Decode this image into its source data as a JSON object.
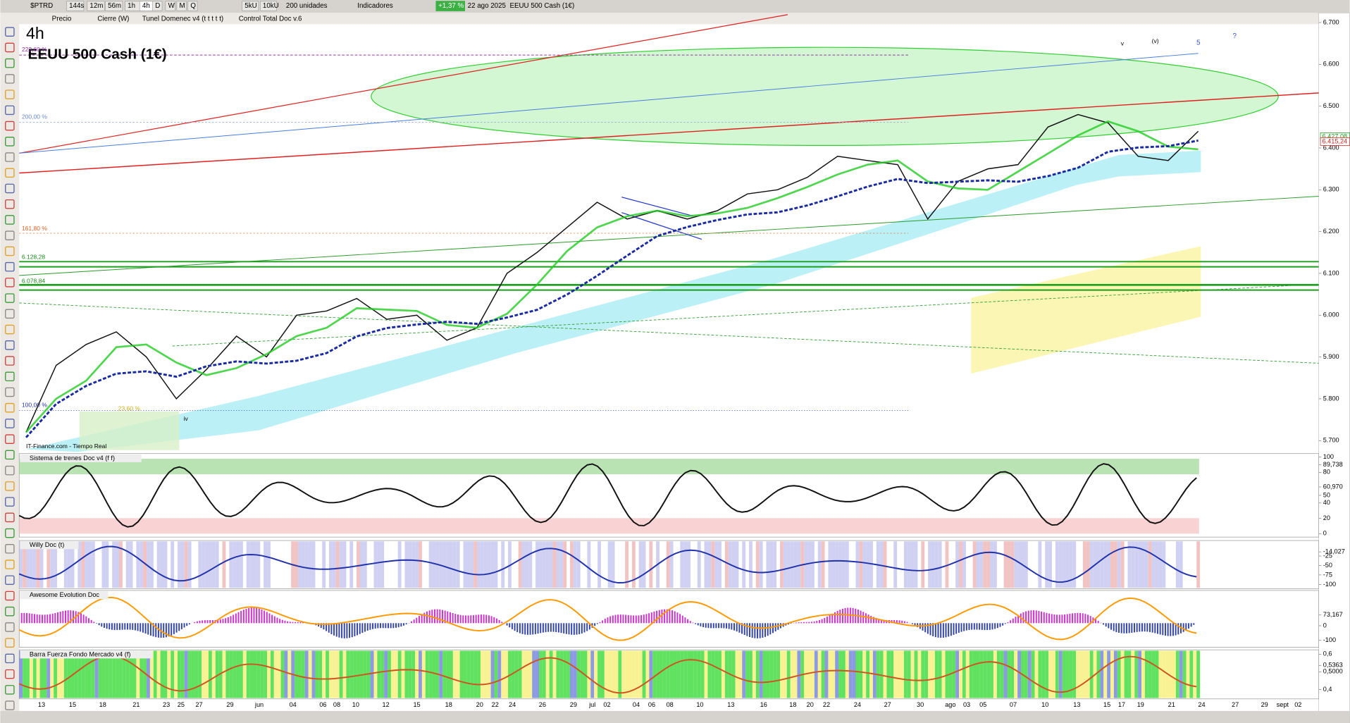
{
  "toolbar": {
    "symbol": "$PTRD",
    "timeframes": [
      "144s",
      "12m",
      "56m",
      "1h",
      "4h",
      "D",
      "W",
      "M",
      "Q",
      "5kU",
      "10kU"
    ],
    "units": "200 unidades",
    "indicators": "Indicadores",
    "change": "+1,37 %",
    "date": "22 ago 2025",
    "instrument": "EEUU 500 Cash (1€)"
  },
  "price_toolbar": {
    "items": [
      "Precio",
      "Cierre (W)",
      "Tunel Domenec v4 (t t t t t)",
      "Control Total Doc v.6"
    ]
  },
  "main_chart": {
    "timeframe": "4h",
    "title": "EEUU 500 Cash (1€)",
    "source": "IT-Finance.com - Tiempo Real",
    "fib_labels": [
      "223,60 %",
      "200,00 %",
      "161,80 %",
      "100,00 %",
      "23,60 %"
    ],
    "level_labels": [
      "6.128,28",
      "6.078,84"
    ],
    "wave_labels": [
      "iv",
      "v",
      "(v)",
      "5",
      "?"
    ],
    "ylim": [
      5673,
      6721
    ],
    "yticks": [
      {
        "value": 5700,
        "label": "5.700"
      },
      {
        "value": 5800,
        "label": "5.800"
      },
      {
        "value": 5900,
        "label": "5.900"
      },
      {
        "value": 6000,
        "label": "6.000"
      },
      {
        "value": 6100,
        "label": "6.100"
      },
      {
        "value": 6200,
        "label": "6.200"
      },
      {
        "value": 6300,
        "label": "6.300"
      },
      {
        "value": 6400,
        "label": "6.400"
      },
      {
        "value": 6500,
        "label": "6.500"
      },
      {
        "value": 6600,
        "label": "6.600"
      },
      {
        "value": 6700,
        "label": "6.700"
      }
    ],
    "price_labels": [
      {
        "value": 6427.08,
        "label": "6.427,08"
      },
      {
        "value": 6415.24,
        "label": "6.415,24"
      }
    ],
    "close": [
      5720,
      5880,
      5930,
      5960,
      5900,
      5800,
      5870,
      5950,
      5900,
      6000,
      6010,
      6040,
      5990,
      6000,
      5940,
      5970,
      6100,
      6150,
      6210,
      6270,
      6230,
      6250,
      6230,
      6250,
      6290,
      6300,
      6330,
      6380,
      6370,
      6360,
      6230,
      6320,
      6350,
      6360,
      6450,
      6480,
      6460,
      6380,
      6370,
      6440
    ]
  },
  "panels": [
    {
      "title": "Sistema de trenes Doc v4 (f f)",
      "ylim": [
        -4.5,
        104.5
      ],
      "yticks": [
        100,
        {
          "value": 89.738,
          "label": "89,738"
        },
        80,
        {
          "value": 60.97,
          "label": "60,970"
        },
        50,
        40,
        20,
        0
      ]
    },
    {
      "title": "Willy Doc (t)",
      "ylim": [
        -111.4,
        15.9
      ],
      "yticks": [
        {
          "value": -14.027,
          "label": "-14,027"
        },
        -25,
        -50,
        -75,
        -100
      ]
    },
    {
      "title": "Awesome Evolution Doc",
      "ylim": [
        -147,
        241
      ],
      "yticks": [
        {
          "value": 73.167,
          "label": "73,167"
        },
        0,
        -100
      ]
    },
    {
      "title": "Barra Fuerza Fondo Mercado v4 (f)",
      "ylim": [
        0.3463,
        0.6244
      ],
      "yticks": [
        {
          "value": 0.6,
          "label": "0,6"
        },
        {
          "value": 0.5363,
          "label": "0,5363"
        },
        {
          "value": 0.5,
          "label": "0,5000"
        },
        {
          "value": 0.4,
          "label": "0,4"
        }
      ]
    }
  ],
  "date_labels": [
    "13",
    "15",
    "18",
    "21",
    "23",
    "25",
    "27",
    "29",
    "jun",
    "04",
    "06",
    "08",
    "10",
    "12",
    "15",
    "18",
    "20",
    "22",
    "24",
    "26",
    "29",
    "jul",
    "02",
    "04",
    "06",
    "08",
    "10",
    "13",
    "16",
    "18",
    "20",
    "22",
    "24",
    "27",
    "30",
    "ago",
    "03",
    "05",
    "07",
    "10",
    "13",
    "15",
    "17",
    "19",
    "21",
    "24",
    "27",
    "29",
    "sept",
    "02"
  ]
}
